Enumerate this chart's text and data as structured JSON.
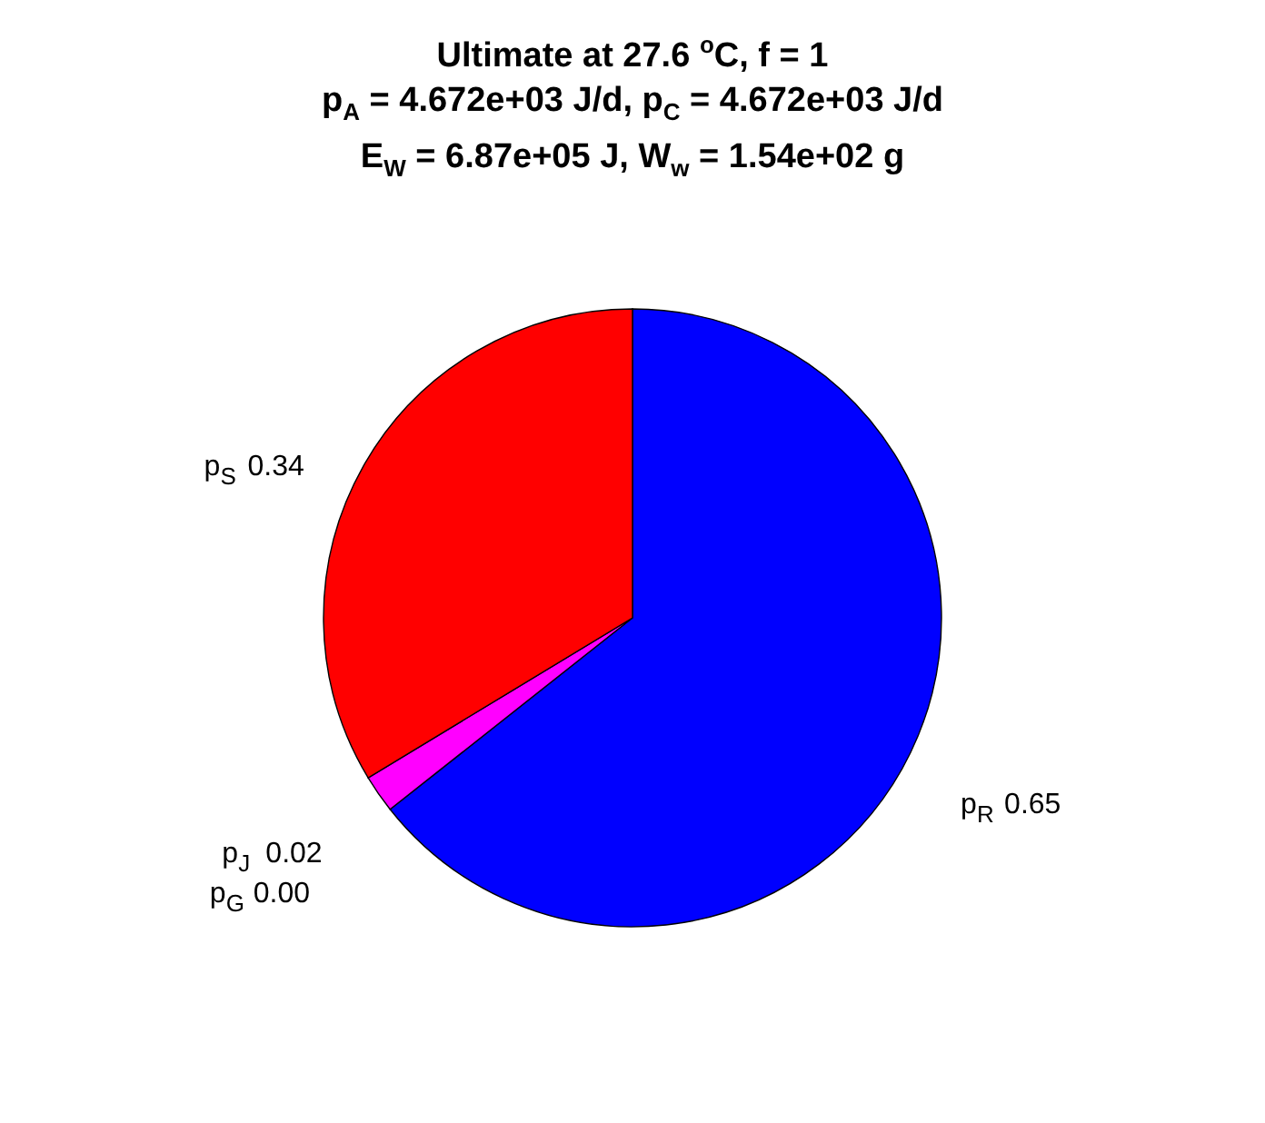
{
  "chart_data": {
    "type": "pie",
    "title": "Ultimate at 27.6 $^{o}$C, f = 1\np$_{A}$ = 4.672e+03 J/d, p$_{C}$ = 4.672e+03 J/d\nE$_{W}$ = 6.87e+05 J, W$_{w}$ = 1.54e+02 g",
    "categories": [
      "p$_{R}$",
      "p$_{J}$",
      "p$_{G}$",
      "p$_{S}$"
    ],
    "values": [
      0.65,
      0.02,
      0.0,
      0.34
    ],
    "value_labels": [
      "0.65",
      "0.02",
      "0.00",
      "0.34"
    ],
    "colors": [
      "#0000ff",
      "#ff00ff",
      "#00ffff",
      "#ff0000"
    ]
  }
}
